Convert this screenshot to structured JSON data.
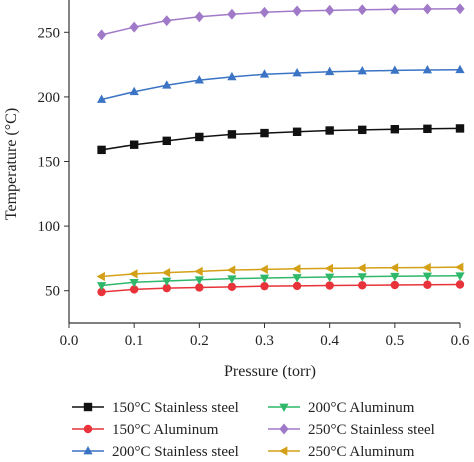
{
  "chart_data": {
    "type": "line",
    "xlabel": "Pressure (torr)",
    "ylabel": "Temperature (°C)",
    "xlim": [
      0.0,
      0.6
    ],
    "ylim": [
      25,
      275
    ],
    "xticks": [
      "0.0",
      "0.1",
      "0.2",
      "0.3",
      "0.4",
      "0.5",
      "0.6"
    ],
    "yticks": [
      "50",
      "100",
      "150",
      "200",
      "250"
    ],
    "grid": false,
    "legend_position": "bottom",
    "x": [
      0.05,
      0.1,
      0.15,
      0.2,
      0.25,
      0.3,
      0.35,
      0.4,
      0.45,
      0.5,
      0.55,
      0.6
    ],
    "series": [
      {
        "name": "150°C Stainless steel",
        "color": "#111111",
        "marker": "square",
        "values": [
          159,
          163,
          166,
          169,
          171,
          172,
          173,
          174,
          174.5,
          175,
          175.3,
          175.6
        ]
      },
      {
        "name": "150°C Aluminum",
        "color": "#e8333a",
        "marker": "circle",
        "values": [
          49,
          51,
          52,
          52.5,
          53,
          53.5,
          53.7,
          54,
          54.2,
          54.4,
          54.6,
          54.8
        ]
      },
      {
        "name": "200°C Stainless steel",
        "color": "#3b74c4",
        "marker": "triangle-up",
        "values": [
          198,
          204,
          209,
          213,
          215.5,
          217.5,
          218.5,
          219.5,
          220,
          220.5,
          220.8,
          221
        ]
      },
      {
        "name": "200°C Aluminum",
        "color": "#2fb86a",
        "marker": "triangle-down",
        "values": [
          54,
          56.5,
          57.5,
          58.5,
          59.3,
          59.8,
          60.2,
          60.6,
          60.9,
          61.2,
          61.4,
          61.6
        ]
      },
      {
        "name": "250°C Stainless steel",
        "color": "#a07ac8",
        "marker": "diamond",
        "values": [
          248,
          254,
          259,
          262,
          264,
          265.5,
          266.5,
          267,
          267.5,
          267.8,
          268,
          268.2
        ]
      },
      {
        "name": "250°C Aluminum",
        "color": "#d4a017",
        "marker": "triangle-left",
        "values": [
          61,
          63,
          64,
          65,
          66,
          66.5,
          67,
          67.3,
          67.6,
          67.8,
          68,
          68.2
        ]
      }
    ]
  }
}
